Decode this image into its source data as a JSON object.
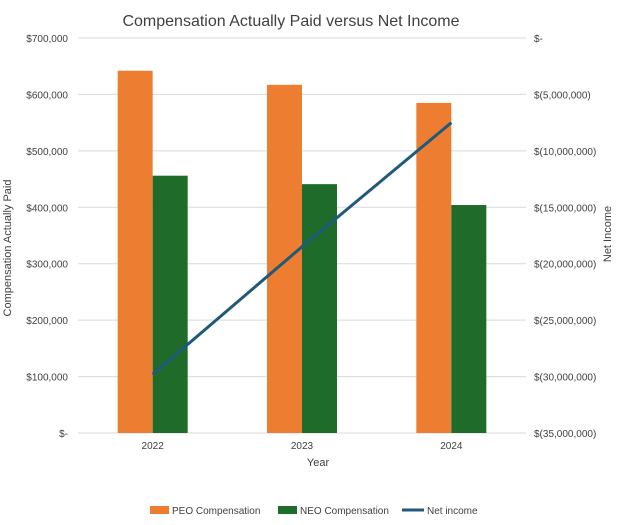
{
  "chart_data": {
    "type": "bar",
    "title": "Compensation Actually Paid versus Net Income",
    "xlabel": "Year",
    "ylabel": "Compensation Actually Paid",
    "y2label": "Net Income",
    "categories": [
      "2022",
      "2023",
      "2024"
    ],
    "ylim": [
      0,
      700000
    ],
    "y2lim": [
      -35000000,
      0
    ],
    "y_ticks": [
      "$-",
      "$100,000",
      "$200,000",
      "$300,000",
      "$400,000",
      "$500,000",
      "$600,000",
      "$700,000"
    ],
    "y2_ticks": [
      "$(35,000,000)",
      "$(30,000,000)",
      "$(25,000,000)",
      "$(20,000,000)",
      "$(15,000,000)",
      "$(10,000,000)",
      "$(5,000,000)",
      "$-"
    ],
    "grid": true,
    "legend_position": "bottom",
    "series": [
      {
        "name": "PEO Compensation",
        "type": "bar",
        "axis": "left",
        "color": "#ED7D31",
        "values": [
          642000,
          617000,
          585000
        ]
      },
      {
        "name": "NEO Compensation",
        "type": "bar",
        "axis": "left",
        "color": "#1E6B2A",
        "values": [
          456000,
          441000,
          404000
        ]
      },
      {
        "name": "Net income",
        "type": "line",
        "axis": "right",
        "color": "#1F5A7A",
        "values": [
          -29800000,
          -18500000,
          -7500000
        ]
      }
    ]
  }
}
